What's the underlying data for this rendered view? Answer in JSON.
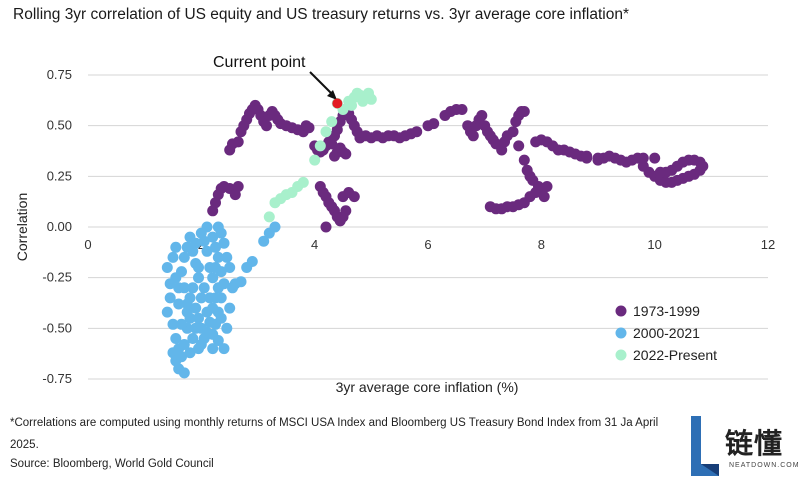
{
  "title": "Rolling 3yr correlation of US equity and US treasury returns vs. 3yr average core inflation*",
  "footnote": "*Correlations are computed using monthly returns of MSCI USA Index and Bloomberg US Treasury Bond Index from 31 Ja April 2025.",
  "source": "Source: Bloomberg, World Gold Council",
  "watermark": {
    "text": "链懂",
    "sub": "NEATDOWN.COM"
  },
  "chart_data": {
    "type": "scatter",
    "xlabel": "3yr average core inflation (%)",
    "ylabel": "Correlation",
    "xlim": [
      0,
      12
    ],
    "ylim": [
      -0.75,
      0.75
    ],
    "xticks": [
      "0",
      "2",
      "4",
      "6",
      "8",
      "10",
      "12"
    ],
    "yticks": [
      "0.75",
      "0.50",
      "0.25",
      "0.00",
      "-0.25",
      "-0.50",
      "-0.75"
    ],
    "grid": "horizontal",
    "legend_position": "bottom-right",
    "annotation": {
      "text": "Current point",
      "x": 4.4,
      "y": 0.61
    },
    "series": [
      {
        "name": "1973-1999",
        "color": "#6a2a7e",
        "points": [
          [
            2.2,
            0.08
          ],
          [
            2.25,
            0.12
          ],
          [
            2.3,
            0.16
          ],
          [
            2.35,
            0.19
          ],
          [
            2.4,
            0.2
          ],
          [
            2.5,
            0.19
          ],
          [
            2.6,
            0.16
          ],
          [
            2.65,
            0.2
          ],
          [
            2.5,
            0.38
          ],
          [
            2.55,
            0.41
          ],
          [
            2.65,
            0.42
          ],
          [
            2.7,
            0.47
          ],
          [
            2.75,
            0.5
          ],
          [
            2.8,
            0.53
          ],
          [
            2.85,
            0.56
          ],
          [
            2.9,
            0.58
          ],
          [
            2.95,
            0.6
          ],
          [
            3.0,
            0.58
          ],
          [
            3.05,
            0.55
          ],
          [
            3.1,
            0.52
          ],
          [
            3.15,
            0.5
          ],
          [
            3.2,
            0.55
          ],
          [
            3.25,
            0.57
          ],
          [
            3.3,
            0.55
          ],
          [
            3.35,
            0.53
          ],
          [
            3.4,
            0.51
          ],
          [
            3.5,
            0.5
          ],
          [
            3.6,
            0.49
          ],
          [
            3.7,
            0.48
          ],
          [
            3.8,
            0.47
          ],
          [
            3.85,
            0.5
          ],
          [
            3.9,
            0.49
          ],
          [
            4.0,
            0.4
          ],
          [
            4.05,
            0.38
          ],
          [
            4.1,
            0.37
          ],
          [
            4.15,
            0.38
          ],
          [
            4.2,
            0.4
          ],
          [
            4.25,
            0.42
          ],
          [
            4.3,
            0.41
          ],
          [
            4.35,
            0.45
          ],
          [
            4.4,
            0.48
          ],
          [
            4.45,
            0.52
          ],
          [
            4.5,
            0.55
          ],
          [
            4.55,
            0.58
          ],
          [
            4.6,
            0.56
          ],
          [
            4.65,
            0.53
          ],
          [
            4.7,
            0.5
          ],
          [
            4.75,
            0.47
          ],
          [
            4.8,
            0.44
          ],
          [
            4.35,
            0.35
          ],
          [
            4.4,
            0.37
          ],
          [
            4.45,
            0.39
          ],
          [
            4.5,
            0.37
          ],
          [
            4.55,
            0.36
          ],
          [
            4.1,
            0.2
          ],
          [
            4.15,
            0.17
          ],
          [
            4.2,
            0.15
          ],
          [
            4.25,
            0.12
          ],
          [
            4.3,
            0.1
          ],
          [
            4.35,
            0.08
          ],
          [
            4.4,
            0.05
          ],
          [
            4.45,
            0.03
          ],
          [
            4.5,
            0.05
          ],
          [
            4.55,
            0.08
          ],
          [
            4.5,
            0.15
          ],
          [
            4.6,
            0.17
          ],
          [
            4.7,
            0.15
          ],
          [
            4.2,
            0.0
          ],
          [
            4.8,
            0.44
          ],
          [
            4.9,
            0.45
          ],
          [
            5.0,
            0.44
          ],
          [
            5.1,
            0.45
          ],
          [
            5.2,
            0.44
          ],
          [
            5.3,
            0.45
          ],
          [
            5.4,
            0.45
          ],
          [
            5.5,
            0.44
          ],
          [
            5.6,
            0.45
          ],
          [
            5.7,
            0.46
          ],
          [
            5.8,
            0.47
          ],
          [
            6.0,
            0.5
          ],
          [
            6.1,
            0.51
          ],
          [
            6.3,
            0.55
          ],
          [
            6.4,
            0.57
          ],
          [
            6.5,
            0.58
          ],
          [
            6.6,
            0.58
          ],
          [
            6.7,
            0.5
          ],
          [
            6.75,
            0.47
          ],
          [
            6.8,
            0.45
          ],
          [
            6.85,
            0.5
          ],
          [
            6.9,
            0.53
          ],
          [
            6.95,
            0.55
          ],
          [
            7.0,
            0.5
          ],
          [
            7.05,
            0.47
          ],
          [
            7.1,
            0.45
          ],
          [
            7.15,
            0.43
          ],
          [
            7.2,
            0.41
          ],
          [
            7.3,
            0.38
          ],
          [
            7.35,
            0.42
          ],
          [
            7.4,
            0.45
          ],
          [
            7.5,
            0.47
          ],
          [
            7.55,
            0.52
          ],
          [
            7.6,
            0.55
          ],
          [
            7.65,
            0.57
          ],
          [
            7.7,
            0.57
          ],
          [
            7.6,
            0.4
          ],
          [
            7.7,
            0.33
          ],
          [
            7.75,
            0.28
          ],
          [
            7.8,
            0.25
          ],
          [
            7.85,
            0.23
          ],
          [
            7.9,
            0.42
          ],
          [
            8.0,
            0.43
          ],
          [
            8.1,
            0.42
          ],
          [
            8.2,
            0.4
          ],
          [
            8.3,
            0.38
          ],
          [
            8.4,
            0.38
          ],
          [
            8.5,
            0.37
          ],
          [
            8.6,
            0.36
          ],
          [
            8.7,
            0.35
          ],
          [
            8.8,
            0.34
          ],
          [
            9.0,
            0.33
          ],
          [
            9.1,
            0.34
          ],
          [
            9.2,
            0.35
          ],
          [
            9.3,
            0.34
          ],
          [
            9.4,
            0.33
          ],
          [
            9.5,
            0.32
          ],
          [
            9.6,
            0.33
          ],
          [
            9.7,
            0.34
          ],
          [
            9.8,
            0.3
          ],
          [
            9.9,
            0.27
          ],
          [
            10.0,
            0.25
          ],
          [
            10.1,
            0.23
          ],
          [
            10.2,
            0.22
          ],
          [
            10.3,
            0.22
          ],
          [
            10.4,
            0.23
          ],
          [
            10.5,
            0.24
          ],
          [
            10.6,
            0.25
          ],
          [
            10.7,
            0.26
          ],
          [
            10.8,
            0.28
          ],
          [
            10.85,
            0.3
          ],
          [
            10.8,
            0.32
          ],
          [
            10.7,
            0.33
          ],
          [
            10.6,
            0.33
          ],
          [
            10.5,
            0.32
          ],
          [
            10.4,
            0.3
          ],
          [
            10.3,
            0.28
          ],
          [
            10.2,
            0.27
          ],
          [
            10.1,
            0.27
          ],
          [
            10.0,
            0.34
          ],
          [
            9.8,
            0.34
          ],
          [
            9.0,
            0.34
          ],
          [
            8.8,
            0.35
          ],
          [
            7.1,
            0.1
          ],
          [
            7.2,
            0.09
          ],
          [
            7.3,
            0.09
          ],
          [
            7.4,
            0.1
          ],
          [
            7.5,
            0.1
          ],
          [
            7.6,
            0.11
          ],
          [
            7.7,
            0.12
          ],
          [
            7.8,
            0.15
          ],
          [
            7.9,
            0.17
          ],
          [
            8.0,
            0.19
          ],
          [
            8.1,
            0.2
          ],
          [
            8.05,
            0.15
          ],
          [
            7.95,
            0.2
          ]
        ]
      },
      {
        "name": "2000-2021",
        "color": "#62b6ea",
        "points": [
          [
            1.4,
            -0.2
          ],
          [
            1.5,
            -0.15
          ],
          [
            1.55,
            -0.25
          ],
          [
            1.6,
            -0.3
          ],
          [
            1.45,
            -0.35
          ],
          [
            1.4,
            -0.42
          ],
          [
            1.5,
            -0.48
          ],
          [
            1.55,
            -0.55
          ],
          [
            1.6,
            -0.6
          ],
          [
            1.5,
            -0.62
          ],
          [
            1.55,
            -0.66
          ],
          [
            1.6,
            -0.7
          ],
          [
            1.7,
            -0.72
          ],
          [
            1.65,
            -0.64
          ],
          [
            1.7,
            -0.58
          ],
          [
            1.75,
            -0.5
          ],
          [
            1.8,
            -0.45
          ],
          [
            1.75,
            -0.38
          ],
          [
            1.7,
            -0.3
          ],
          [
            1.65,
            -0.22
          ],
          [
            1.7,
            -0.15
          ],
          [
            1.75,
            -0.1
          ],
          [
            1.8,
            -0.05
          ],
          [
            1.85,
            -0.12
          ],
          [
            1.9,
            -0.18
          ],
          [
            1.95,
            -0.25
          ],
          [
            1.85,
            -0.3
          ],
          [
            1.8,
            -0.35
          ],
          [
            1.9,
            -0.4
          ],
          [
            1.95,
            -0.45
          ],
          [
            2.0,
            -0.5
          ],
          [
            2.05,
            -0.55
          ],
          [
            2.1,
            -0.52
          ],
          [
            2.15,
            -0.47
          ],
          [
            2.2,
            -0.4
          ],
          [
            2.25,
            -0.35
          ],
          [
            2.3,
            -0.3
          ],
          [
            2.2,
            -0.25
          ],
          [
            2.15,
            -0.2
          ],
          [
            2.1,
            -0.12
          ],
          [
            2.05,
            -0.07
          ],
          [
            2.0,
            -0.03
          ],
          [
            2.1,
            0.0
          ],
          [
            2.2,
            -0.05
          ],
          [
            2.25,
            -0.1
          ],
          [
            2.3,
            -0.15
          ],
          [
            2.35,
            -0.22
          ],
          [
            2.4,
            -0.28
          ],
          [
            2.35,
            -0.35
          ],
          [
            2.3,
            -0.42
          ],
          [
            2.25,
            -0.48
          ],
          [
            2.2,
            -0.53
          ],
          [
            2.3,
            -0.56
          ],
          [
            2.4,
            -0.6
          ],
          [
            2.45,
            -0.5
          ],
          [
            2.5,
            -0.4
          ],
          [
            2.55,
            -0.3
          ],
          [
            2.5,
            -0.2
          ],
          [
            2.45,
            -0.15
          ],
          [
            2.4,
            -0.08
          ],
          [
            2.35,
            -0.03
          ],
          [
            2.3,
            0.0
          ],
          [
            1.85,
            -0.55
          ],
          [
            1.95,
            -0.6
          ],
          [
            2.0,
            -0.35
          ],
          [
            1.95,
            -0.2
          ],
          [
            1.9,
            -0.08
          ],
          [
            2.05,
            -0.3
          ],
          [
            2.15,
            -0.35
          ],
          [
            1.75,
            -0.42
          ],
          [
            1.65,
            -0.48
          ],
          [
            1.8,
            -0.62
          ],
          [
            2.6,
            -0.28
          ],
          [
            2.7,
            -0.27
          ],
          [
            2.8,
            -0.2
          ],
          [
            2.9,
            -0.17
          ],
          [
            3.1,
            -0.07
          ],
          [
            3.2,
            -0.03
          ],
          [
            3.3,
            0.0
          ],
          [
            2.2,
            -0.6
          ],
          [
            1.55,
            -0.1
          ],
          [
            1.45,
            -0.28
          ],
          [
            1.6,
            -0.38
          ],
          [
            2.0,
            -0.58
          ],
          [
            2.25,
            -0.2
          ],
          [
            2.1,
            -0.42
          ],
          [
            1.9,
            -0.5
          ],
          [
            2.35,
            -0.45
          ]
        ]
      },
      {
        "name": "2022-Present",
        "color": "#a8f0cc",
        "points": [
          [
            3.2,
            0.05
          ],
          [
            3.3,
            0.12
          ],
          [
            3.4,
            0.14
          ],
          [
            3.5,
            0.16
          ],
          [
            3.6,
            0.17
          ],
          [
            3.7,
            0.2
          ],
          [
            3.8,
            0.22
          ],
          [
            4.0,
            0.33
          ],
          [
            4.1,
            0.4
          ],
          [
            4.2,
            0.47
          ],
          [
            4.3,
            0.52
          ],
          [
            4.5,
            0.58
          ],
          [
            4.6,
            0.62
          ],
          [
            4.7,
            0.64
          ],
          [
            4.8,
            0.65
          ],
          [
            4.9,
            0.64
          ],
          [
            5.0,
            0.63
          ],
          [
            4.95,
            0.66
          ],
          [
            4.75,
            0.66
          ],
          [
            4.85,
            0.62
          ],
          [
            4.65,
            0.6
          ],
          [
            4.4,
            0.61
          ]
        ]
      }
    ]
  }
}
